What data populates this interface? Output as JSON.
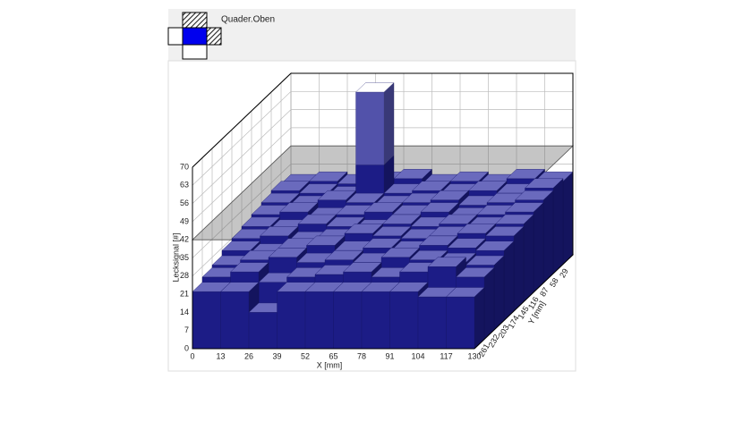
{
  "view_label": "Quader.Oben",
  "chart_data": {
    "type": "bar3d",
    "xlabel": "X [mm]",
    "ylabel": "Y [mm]",
    "zlabel": "Lecksignal [#]",
    "xlim": [
      0,
      130
    ],
    "xticks": [
      0,
      13,
      26,
      39,
      52,
      65,
      78,
      91,
      104,
      117,
      130
    ],
    "ylim": [
      290,
      0
    ],
    "yticks": [
      261,
      232,
      203,
      174,
      145,
      116,
      87,
      58,
      29
    ],
    "zlim": [
      0,
      70
    ],
    "zticks": [
      0,
      7,
      14,
      21,
      28,
      35,
      42,
      49,
      56,
      63,
      70
    ],
    "threshold": 42,
    "color": "#1c1c86",
    "top_color": "#6a6abd",
    "above_color": "#5252aa",
    "grid": true,
    "values": [
      [
        22,
        22,
        14,
        22,
        22,
        22,
        22,
        22,
        20,
        20
      ],
      [
        24,
        26,
        22,
        24,
        25,
        26,
        24,
        26,
        28,
        24
      ],
      [
        25,
        27,
        28,
        26,
        27,
        26,
        28,
        27,
        26,
        25
      ],
      [
        27,
        26,
        28,
        29,
        27,
        28,
        27,
        29,
        28,
        27
      ],
      [
        28,
        29,
        27,
        28,
        30,
        29,
        28,
        29,
        30,
        29
      ],
      [
        29,
        28,
        30,
        29,
        28,
        30,
        29,
        30,
        29,
        30
      ],
      [
        30,
        31,
        29,
        30,
        31,
        30,
        31,
        29,
        30,
        31
      ],
      [
        31,
        30,
        32,
        31,
        30,
        31,
        32,
        30,
        31,
        32
      ],
      [
        32,
        31,
        30,
        70,
        31,
        32,
        31,
        32,
        31,
        33
      ],
      [
        31,
        32,
        31,
        32,
        33,
        31,
        32,
        31,
        33,
        32
      ]
    ]
  }
}
